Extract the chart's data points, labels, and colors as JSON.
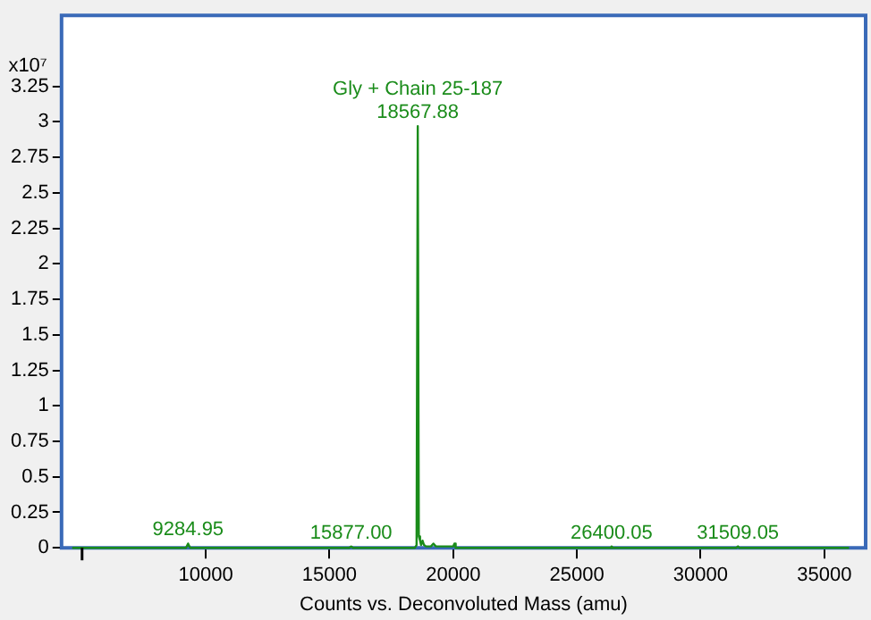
{
  "chart_data": {
    "type": "line",
    "xlabel": "Counts vs. Deconvoluted Mass (amu)",
    "ylabel": "x10⁷",
    "series": [
      {
        "color": "#1a8c1a",
        "x": [
          4600,
          6000,
          8000,
          9200,
          9284.95,
          9370,
          12000,
          15800,
          15877,
          15950,
          18450,
          18520,
          18567.88,
          18610,
          18660,
          18700,
          18760,
          18820,
          18900,
          19100,
          19200,
          19300,
          20000,
          20050,
          20100,
          22000,
          26350,
          26400.05,
          26450,
          31450,
          31509.05,
          31560,
          34000,
          36000
        ],
        "values": [
          0,
          0,
          0,
          0,
          0.03,
          0,
          0,
          0,
          0.01,
          0,
          0,
          0.02,
          2.97,
          0.08,
          0.05,
          0.02,
          0.05,
          0.02,
          0.01,
          0.01,
          0.03,
          0.01,
          0.01,
          0.03,
          0,
          0,
          0,
          0.01,
          0,
          0,
          0.01,
          0,
          0,
          0
        ]
      }
    ],
    "xlim": [
      4170,
      36670
    ],
    "xticks": [
      {
        "value": 5000,
        "label": null
      },
      10000,
      15000,
      20000,
      25000,
      30000,
      35000
    ],
    "ylim": [
      0,
      3.75
    ],
    "yticks": [
      0,
      0.25,
      0.5,
      0.75,
      1,
      1.25,
      1.5,
      1.75,
      2,
      2.25,
      2.5,
      2.75,
      3,
      3.25
    ],
    "grid": false,
    "legend": false,
    "marker": "none",
    "line_style": "solid",
    "annotations": [
      {
        "text": "Gly + Chain 25-187",
        "x": 18567.88,
        "y": 2.97
      },
      {
        "text": "18567.88",
        "x": 18567.88,
        "y": 2.97
      },
      {
        "text": "9284.95",
        "x": 9284.95,
        "y": 0.03
      },
      {
        "text": "15877.00",
        "x": 15877,
        "y": 0.01
      },
      {
        "text": "26400.05",
        "x": 26400.05,
        "y": 0.01
      },
      {
        "text": "31509.05",
        "x": 31509.05,
        "y": 0.01
      }
    ]
  }
}
